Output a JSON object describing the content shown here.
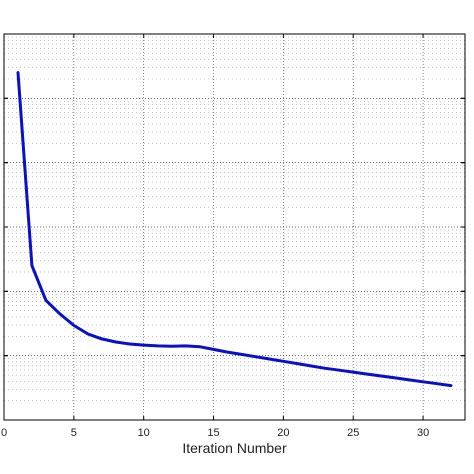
{
  "chart_data": {
    "type": "line",
    "title": "",
    "xlabel": "Iteration Number",
    "ylabel": "",
    "xlim": [
      0,
      33
    ],
    "ylim": [
      0,
      1
    ],
    "xticks": [
      0,
      5,
      10,
      15,
      20,
      25,
      30
    ],
    "x_tick_labels": [
      "0",
      "5",
      "10",
      "15",
      "20",
      "25",
      "30"
    ],
    "y_scale": "log",
    "y_tick_labels_visible": false,
    "grid": true,
    "grid_style": "dotted major and minor",
    "line_color": "#0a10c8",
    "series": [
      {
        "x": [
          1,
          2,
          3,
          4,
          5,
          6,
          7,
          8,
          9,
          10,
          11,
          12,
          13,
          14,
          15,
          16,
          17,
          18,
          19,
          20,
          21,
          22,
          23,
          24,
          25,
          26,
          27,
          28,
          29,
          30,
          31,
          32
        ],
        "values": [
          0.9,
          0.4,
          0.31,
          0.275,
          0.245,
          0.223,
          0.21,
          0.202,
          0.197,
          0.194,
          0.192,
          0.191,
          0.192,
          0.19,
          0.183,
          0.176,
          0.17,
          0.164,
          0.158,
          0.152,
          0.146,
          0.14,
          0.134,
          0.129,
          0.124,
          0.119,
          0.114,
          0.109,
          0.104,
          0.099,
          0.094,
          0.089
        ]
      }
    ]
  }
}
